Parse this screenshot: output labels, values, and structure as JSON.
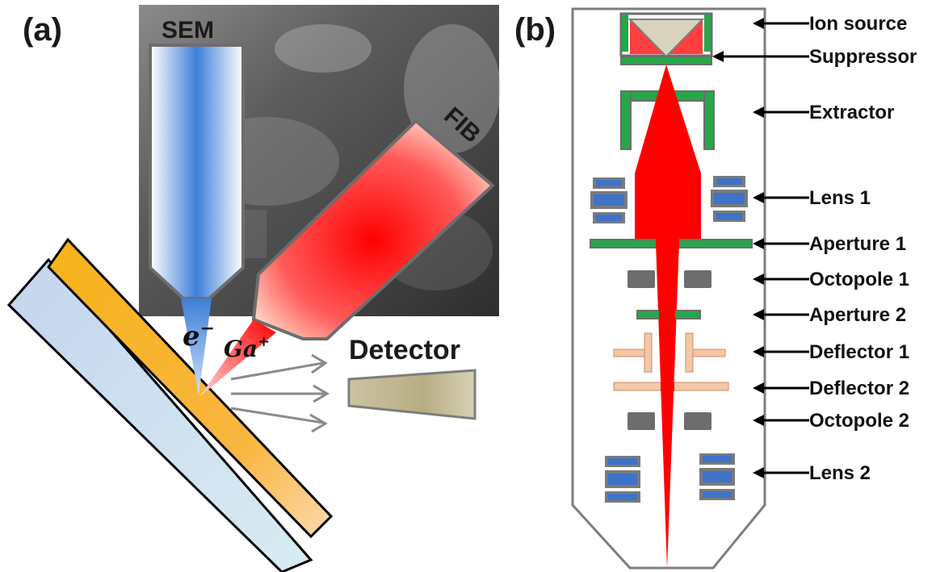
{
  "panel_a": {
    "label": "(a)",
    "sem_label": "SEM",
    "fib_label": "FIB",
    "electron_label": "e",
    "electron_sup": "−",
    "ion_label": "Ga",
    "ion_sup": "+",
    "detector_label": "Detector"
  },
  "panel_b": {
    "label": "(b)",
    "components": [
      "Ion source",
      "Suppressor",
      "Extractor",
      "Lens 1",
      "Aperture 1",
      "Octopole 1",
      "Aperture 2",
      "Deflector 1",
      "Deflector 2",
      "Octopole 2",
      "Lens 2"
    ]
  },
  "colors": {
    "electron_beam": "#3d7fd8",
    "ion_beam": "#ff0000",
    "gold_layer": "#f7b21a",
    "substrate": "#c6d7ee",
    "green_electrode": "#27a64a",
    "lens_blue": "#3d73c9",
    "deflector": "#f4c7a6"
  }
}
